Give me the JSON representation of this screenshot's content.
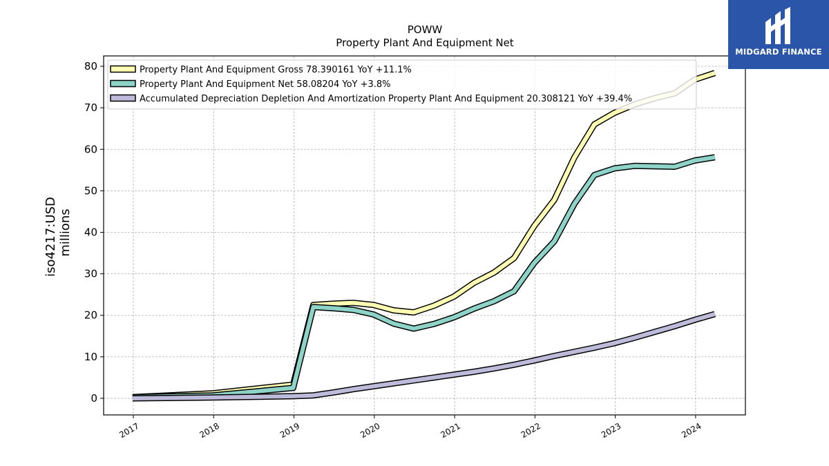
{
  "logo": {
    "text": "MIDGARD FINANCE"
  },
  "chart_data": {
    "type": "line",
    "title": "POWW",
    "subtitle": "Property Plant And Equipment Net",
    "ylabel_line1": "iso4217:USD",
    "ylabel_line2": "millions",
    "xlim": [
      2016.63,
      2024.62
    ],
    "ylim": [
      -4,
      82.5
    ],
    "x_ticks": [
      2017,
      2018,
      2019,
      2020,
      2021,
      2022,
      2023,
      2024
    ],
    "y_ticks": [
      0,
      10,
      20,
      30,
      40,
      50,
      60,
      70,
      80
    ],
    "grid": true,
    "legend_position": "top-left",
    "series": [
      {
        "name": "Property Plant And Equipment Gross  78.390161 YoY +11.1%",
        "color": "#ffffb3",
        "x": [
          2016.99,
          2017.99,
          2018.99,
          2019.24,
          2019.49,
          2019.74,
          2019.99,
          2020.24,
          2020.49,
          2020.74,
          2020.99,
          2021.24,
          2021.49,
          2021.74,
          2021.99,
          2022.24,
          2022.49,
          2022.74,
          2022.99,
          2023.24,
          2023.49,
          2023.74,
          2023.99,
          2024.24
        ],
        "values": [
          0.3,
          1.2,
          3.3,
          22.5,
          22.8,
          23.0,
          22.5,
          21.2,
          20.7,
          22.3,
          24.5,
          27.8,
          30.3,
          33.8,
          41.5,
          47.8,
          58.0,
          66.0,
          68.8,
          70.8,
          72.3,
          73.5,
          76.8,
          78.39
        ]
      },
      {
        "name": "Property Plant And Equipment Net  58.08204 YoY +3.8%",
        "color": "#8dd3c7",
        "x": [
          2016.99,
          2017.99,
          2018.99,
          2019.24,
          2019.49,
          2019.74,
          2019.99,
          2020.24,
          2020.49,
          2020.74,
          2020.99,
          2021.24,
          2021.49,
          2021.74,
          2021.99,
          2022.24,
          2022.49,
          2022.74,
          2022.99,
          2023.24,
          2023.49,
          2023.74,
          2023.99,
          2024.24
        ],
        "values": [
          0.3,
          0.7,
          2.5,
          22.0,
          21.7,
          21.3,
          20.2,
          18.0,
          16.8,
          17.9,
          19.5,
          21.6,
          23.4,
          25.8,
          32.6,
          37.8,
          46.8,
          53.8,
          55.4,
          56.0,
          55.9,
          55.8,
          57.3,
          58.08
        ]
      },
      {
        "name": "Accumulated Depreciation Depletion And Amortization Property Plant And Equipment  20.308121 YoY +39.4%",
        "color": "#bebada",
        "x": [
          2016.99,
          2017.99,
          2018.99,
          2019.24,
          2019.49,
          2019.74,
          2019.99,
          2020.24,
          2020.49,
          2020.74,
          2020.99,
          2021.24,
          2021.49,
          2021.74,
          2021.99,
          2022.24,
          2022.49,
          2022.74,
          2022.99,
          2023.24,
          2023.49,
          2023.74,
          2023.99,
          2024.24
        ],
        "values": [
          0.0,
          0.2,
          0.5,
          0.7,
          1.4,
          2.2,
          2.9,
          3.6,
          4.3,
          5.0,
          5.7,
          6.4,
          7.2,
          8.1,
          9.1,
          10.2,
          11.2,
          12.2,
          13.3,
          14.6,
          16.0,
          17.4,
          18.9,
          20.31
        ]
      }
    ]
  }
}
